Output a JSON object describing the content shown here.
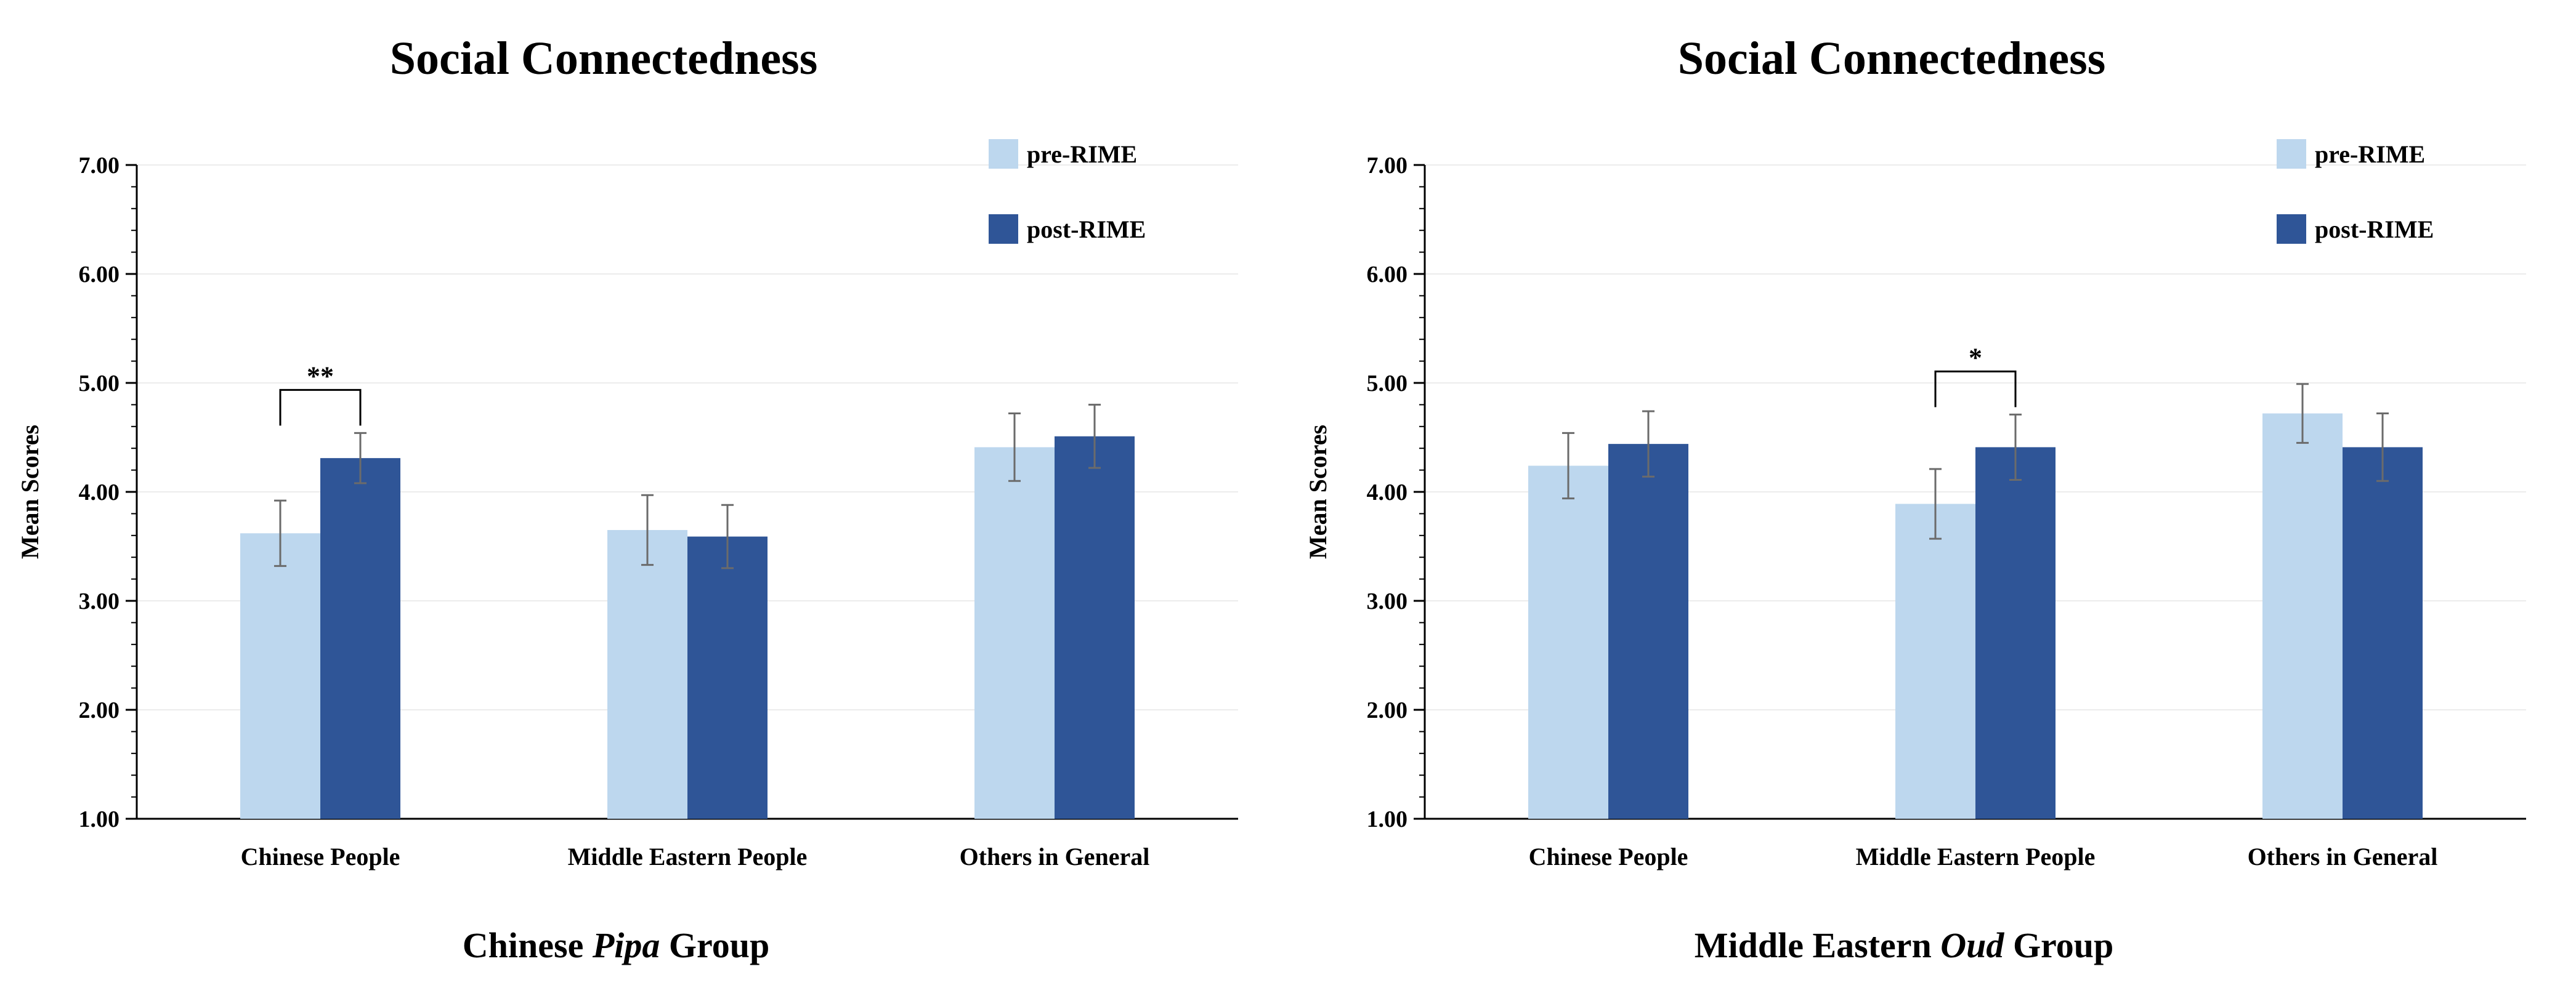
{
  "chart_data": [
    {
      "type": "bar",
      "title": "Social Connectedness",
      "group_label_prefix": "Chinese ",
      "group_label_italic": "Pipa",
      "group_label_suffix": " Group",
      "ylabel": "Mean Scores",
      "xlabel": "",
      "ylim": [
        1.0,
        7.0
      ],
      "yticks": [
        "1.00",
        "2.00",
        "3.00",
        "4.00",
        "5.00",
        "6.00",
        "7.00"
      ],
      "categories": [
        "Chinese People",
        "Middle Eastern People",
        "Others in General"
      ],
      "legend_position": "top-right",
      "series": [
        {
          "name": "pre-RIME",
          "color": "#bdd7ee",
          "values": [
            3.62,
            3.65,
            4.41
          ],
          "errors": [
            0.3,
            0.32,
            0.31
          ]
        },
        {
          "name": "post-RIME",
          "color": "#2f5597",
          "values": [
            4.31,
            3.59,
            4.51
          ],
          "errors": [
            0.23,
            0.29,
            0.29
          ]
        }
      ],
      "significance": [
        {
          "category_index": 0,
          "label": "**"
        }
      ]
    },
    {
      "type": "bar",
      "title": "Social Connectedness",
      "group_label_prefix": "Middle Eastern ",
      "group_label_italic": "Oud",
      "group_label_suffix": " Group",
      "ylabel": "Mean Scores",
      "xlabel": "",
      "ylim": [
        1.0,
        7.0
      ],
      "yticks": [
        "1.00",
        "2.00",
        "3.00",
        "4.00",
        "5.00",
        "6.00",
        "7.00"
      ],
      "categories": [
        "Chinese People",
        "Middle Eastern People",
        "Others in General"
      ],
      "legend_position": "top-right",
      "series": [
        {
          "name": "pre-RIME",
          "color": "#bdd7ee",
          "values": [
            4.24,
            3.89,
            4.72
          ],
          "errors": [
            0.3,
            0.32,
            0.27
          ]
        },
        {
          "name": "post-RIME",
          "color": "#2f5597",
          "values": [
            4.44,
            4.41,
            4.41
          ],
          "errors": [
            0.3,
            0.3,
            0.31
          ]
        }
      ],
      "significance": [
        {
          "category_index": 1,
          "label": "*"
        }
      ]
    }
  ]
}
